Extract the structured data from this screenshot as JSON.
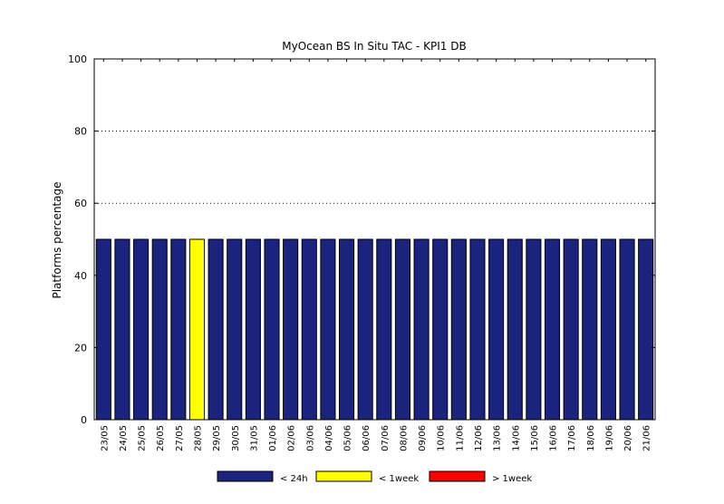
{
  "chart_data": {
    "type": "bar",
    "title": "MyOcean  BS In Situ TAC - KPI1  DB",
    "xlabel": "",
    "ylabel": "Platforms percentage",
    "ylim": [
      0,
      100
    ],
    "yticks": [
      0,
      20,
      40,
      60,
      80,
      100
    ],
    "grid": "horizontal dotted at 60, 80, 100",
    "legend_position": "bottom",
    "categories": [
      "23/05",
      "24/05",
      "25/05",
      "26/05",
      "27/05",
      "28/05",
      "29/05",
      "30/05",
      "31/05",
      "01/06",
      "02/06",
      "03/06",
      "04/06",
      "05/06",
      "06/06",
      "07/06",
      "08/06",
      "09/06",
      "10/06",
      "11/06",
      "12/06",
      "13/06",
      "14/06",
      "15/06",
      "16/06",
      "17/06",
      "18/06",
      "19/06",
      "20/06",
      "21/06"
    ],
    "series": [
      {
        "name": "< 24h",
        "color": "#1a237e",
        "values": [
          50,
          50,
          50,
          50,
          50,
          0,
          50,
          50,
          50,
          50,
          50,
          50,
          50,
          50,
          50,
          50,
          50,
          50,
          50,
          50,
          50,
          50,
          50,
          50,
          50,
          50,
          50,
          50,
          50,
          50
        ]
      },
      {
        "name": "< 1week",
        "color": "#ffff00",
        "values": [
          0,
          0,
          0,
          0,
          0,
          50,
          0,
          0,
          0,
          0,
          0,
          0,
          0,
          0,
          0,
          0,
          0,
          0,
          0,
          0,
          0,
          0,
          0,
          0,
          0,
          0,
          0,
          0,
          0,
          0
        ]
      },
      {
        "name": "> 1week",
        "color": "#ff0000",
        "values": [
          0,
          0,
          0,
          0,
          0,
          0,
          0,
          0,
          0,
          0,
          0,
          0,
          0,
          0,
          0,
          0,
          0,
          0,
          0,
          0,
          0,
          0,
          0,
          0,
          0,
          0,
          0,
          0,
          0,
          0
        ]
      }
    ]
  }
}
